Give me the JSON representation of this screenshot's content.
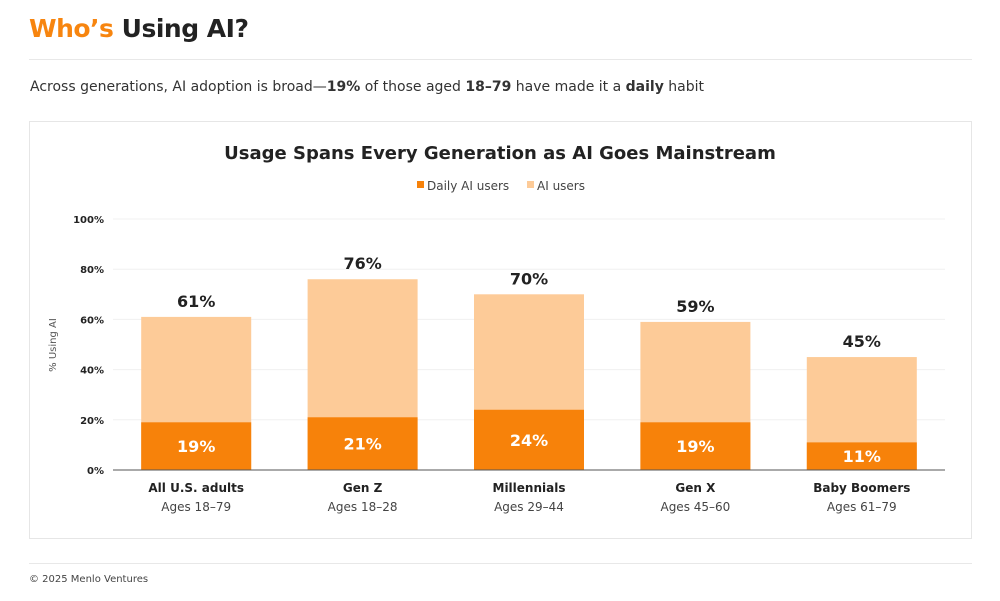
{
  "header": {
    "title_accent": "Who’s",
    "title_rest": "Using AI?"
  },
  "subtitle": {
    "p1": "Across generations, AI adoption is broad—",
    "b1": "19%",
    "p2": " of those aged ",
    "b2": "18–79",
    "p3": " have made it a ",
    "b3": "daily",
    "p4": " habit"
  },
  "footer": {
    "text": "© 2025 Menlo Ventures"
  },
  "chart_data": {
    "type": "bar",
    "stacked": "overlay",
    "title": "Usage Spans Every Generation as AI Goes Mainstream",
    "ylabel": "% Using AI",
    "ylim": [
      0,
      100
    ],
    "yticks": [
      0,
      20,
      40,
      60,
      80,
      100
    ],
    "ytick_labels": [
      "0%",
      "20%",
      "40%",
      "60%",
      "80%",
      "100%"
    ],
    "grid": true,
    "legend_placement": "top-center",
    "categories": [
      "All U.S. adults",
      "Gen Z",
      "Millennials",
      "Gen X",
      "Baby Boomers"
    ],
    "subcategories": [
      "Ages 18–79",
      "Ages 18–28",
      "Ages 29–44",
      "Ages 45–60",
      "Ages 61–79"
    ],
    "series": [
      {
        "name": "Daily AI users",
        "values": [
          19,
          21,
          24,
          19,
          11
        ],
        "labels": [
          "19%",
          "21%",
          "24%",
          "19%",
          "11%"
        ],
        "color": "#f7820a"
      },
      {
        "name": "AI users",
        "values": [
          61,
          76,
          70,
          59,
          45
        ],
        "labels": [
          "61%",
          "76%",
          "70%",
          "59%",
          "45%"
        ],
        "color": "#fdcb98"
      }
    ]
  }
}
